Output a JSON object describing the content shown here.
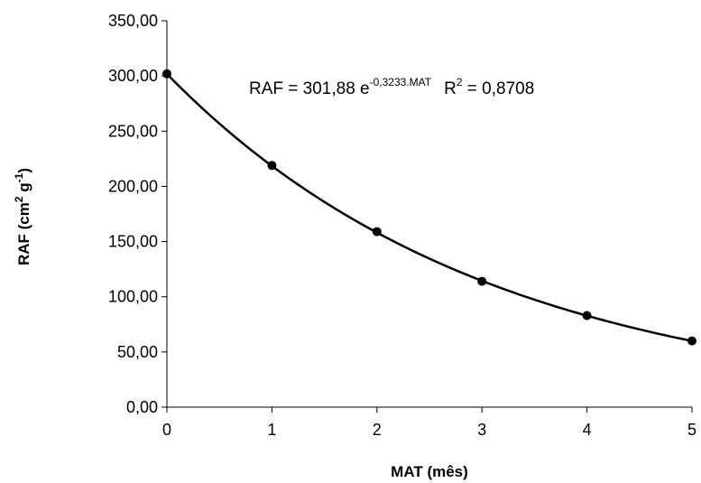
{
  "chart_data": {
    "type": "scatter",
    "x": [
      0,
      1,
      2,
      3,
      4,
      5
    ],
    "y": [
      302,
      219,
      159,
      114,
      83,
      60
    ],
    "xlabel": "MAT (mês)",
    "ylabel_main": "RAF (cm",
    "ylabel_sup1": "2",
    "ylabel_mid": " g",
    "ylabel_sup2": "-1",
    "ylabel_end": ")",
    "xlim": [
      0,
      5
    ],
    "ylim": [
      0,
      350
    ],
    "x_ticks": [
      0,
      1,
      2,
      3,
      4,
      5
    ],
    "x_tick_labels": [
      "0",
      "1",
      "2",
      "3",
      "4",
      "5"
    ],
    "y_ticks": [
      0,
      50,
      100,
      150,
      200,
      250,
      300,
      350
    ],
    "y_tick_labels": [
      "0,00",
      "50,00",
      "100,00",
      "150,00",
      "200,00",
      "250,00",
      "300,00",
      "350,00"
    ],
    "grid": false,
    "trendline": {
      "type": "exponential",
      "a": 301.88,
      "b": -0.3233,
      "equation_main": "RAF = 301,88 e",
      "equation_exp": "-0,3233.MAT",
      "r2_label": "R",
      "r2_sup": "2",
      "r2_value": " = 0,8708"
    },
    "marker_color": "#000000",
    "line_color": "#000000"
  }
}
